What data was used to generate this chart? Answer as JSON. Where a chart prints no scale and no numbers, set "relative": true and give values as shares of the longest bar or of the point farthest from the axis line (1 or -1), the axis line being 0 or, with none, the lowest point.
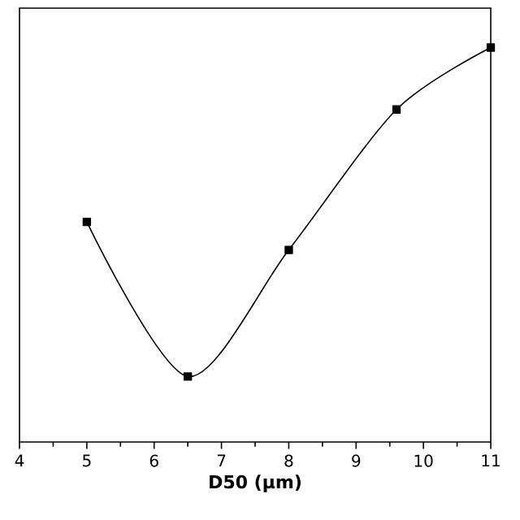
{
  "chart_data": {
    "type": "line",
    "xlabel": "D50 (μm)",
    "relative": true,
    "marker": "square",
    "line_style": "solid",
    "x": [
      5,
      6.5,
      8,
      9.6,
      11
    ],
    "series": [
      {
        "color": "#000000",
        "values": [
          0.558,
          0.166,
          0.487,
          0.843,
          1.0
        ]
      }
    ],
    "xlim": [
      4,
      11
    ],
    "xticks": [
      4,
      5,
      6,
      7,
      8,
      9,
      10,
      11
    ],
    "grid": false
  }
}
